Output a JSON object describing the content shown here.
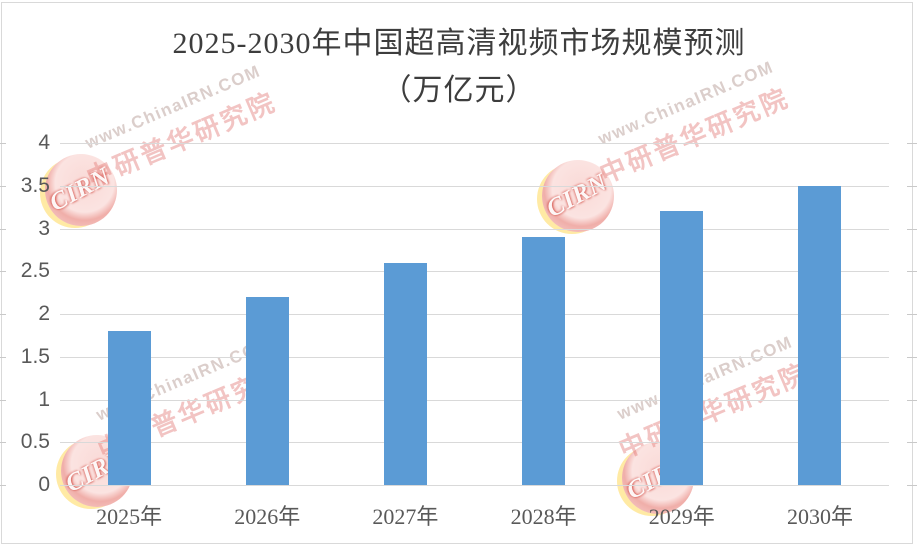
{
  "watermark": {
    "url_text": "www.ChinaIRN.COM",
    "brand_text": "中研普华研究院",
    "logo_text": "CIRN"
  },
  "chart_data": {
    "type": "bar",
    "title": "2025-2030年中国超高清视频市场规模预测",
    "subtitle": "（万亿元）",
    "categories": [
      "2025年",
      "2026年",
      "2027年",
      "2028年",
      "2029年",
      "2030年"
    ],
    "values": [
      1.8,
      2.2,
      2.6,
      2.9,
      3.2,
      3.5
    ],
    "xlabel": "",
    "ylabel": "",
    "ylim": [
      0,
      4
    ],
    "ytick_step": 0.5,
    "ytick_labels": [
      "4",
      "3.5",
      "3",
      "2.5",
      "2",
      "1.5",
      "1",
      "0.5",
      "0"
    ],
    "grid": true,
    "legend": false,
    "bar_color": "#5B9BD5",
    "gridline_color": "#D9D9D9",
    "title_color": "#3D3D3D",
    "axis_label_color": "#595959"
  }
}
